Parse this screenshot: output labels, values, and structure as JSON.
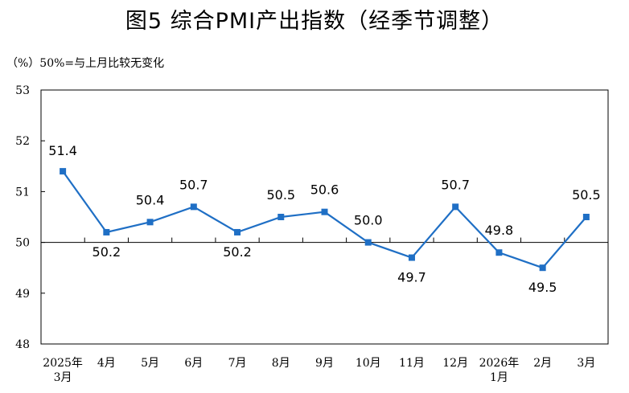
{
  "chart_data": {
    "type": "line",
    "title": "图5  综合PMI产出指数（经季节调整）",
    "note": "（%）50%=与上月比较无变化",
    "categories": [
      "2025年\n3月",
      "4月",
      "5月",
      "6月",
      "7月",
      "8月",
      "9月",
      "10月",
      "11月",
      "12月",
      "2026年\n1月",
      "2月",
      "3月"
    ],
    "series": [
      {
        "values": [
          51.4,
          50.2,
          50.4,
          50.7,
          50.2,
          50.5,
          50.6,
          50.0,
          49.7,
          50.7,
          49.8,
          49.5,
          50.5
        ]
      }
    ],
    "data_labels": [
      "51.4",
      "50.2",
      "50.4",
      "50.7",
      "50.2",
      "50.5",
      "50.6",
      "50.0",
      "49.7",
      "50.7",
      "49.8",
      "49.5",
      "50.5"
    ],
    "ylim": [
      48,
      53
    ],
    "yticks": [
      "48",
      "49",
      "50",
      "51",
      "52",
      "53"
    ],
    "reference_line": 50,
    "grid": false,
    "line_color": "#1f6fc5",
    "axis_color": "#000000"
  }
}
